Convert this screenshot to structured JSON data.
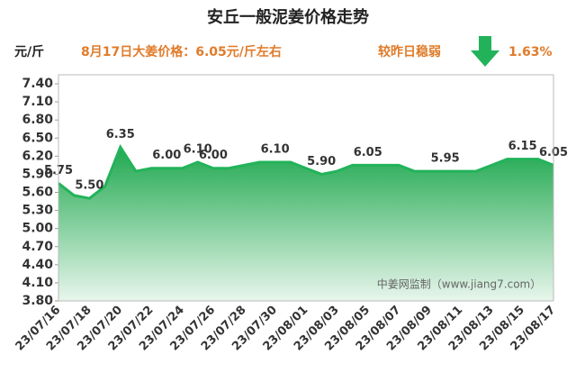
{
  "chart_data": {
    "type": "area",
    "title": "安丘一般泥姜价格走势",
    "unit_label": "元/斤",
    "subtitle": "8月17日大姜价格：6.05元/斤左右",
    "change_text": "较昨日稳弱",
    "change_value": "1.63%",
    "watermark": "中姜网监制（www.jiang7.com）",
    "categories": [
      "23/07/16",
      null,
      "23/07/18",
      null,
      "23/07/20",
      null,
      "23/07/22",
      null,
      "23/07/24",
      null,
      "23/07/26",
      null,
      "23/07/28",
      null,
      "23/07/30",
      null,
      "23/08/01",
      null,
      "23/08/03",
      null,
      "23/08/05",
      null,
      "23/08/07",
      null,
      "23/08/09",
      null,
      "23/08/11",
      null,
      "23/08/13",
      null,
      "23/08/15",
      null,
      "23/08/17"
    ],
    "series": [
      {
        "color": "#22b35a",
        "values": [
          5.75,
          5.55,
          5.5,
          5.7,
          6.35,
          5.95,
          6.0,
          6.0,
          6.0,
          6.1,
          6.0,
          6.0,
          6.05,
          6.1,
          6.1,
          6.1,
          6.0,
          5.9,
          5.95,
          6.05,
          6.05,
          6.05,
          6.05,
          5.95,
          5.95,
          5.95,
          5.95,
          5.95,
          6.05,
          6.15,
          6.15,
          6.15,
          6.05
        ],
        "value_labels": [
          "5.75",
          null,
          "5.50",
          null,
          "6.35",
          null,
          null,
          "6.00",
          null,
          "6.10",
          "6.00",
          null,
          null,
          null,
          "6.10",
          null,
          null,
          "5.90",
          null,
          null,
          "6.05",
          null,
          null,
          null,
          null,
          "5.95",
          null,
          null,
          null,
          null,
          "6.15",
          null,
          "6.05"
        ]
      }
    ],
    "ylim": [
      3.8,
      7.4
    ],
    "yticks": [
      {
        "value": 3.8,
        "label": "3.80"
      },
      {
        "value": 4.1,
        "label": "4.10"
      },
      {
        "value": 4.4,
        "label": "4.40"
      },
      {
        "value": 4.7,
        "label": "4.70"
      },
      {
        "value": 5.0,
        "label": "5.00"
      },
      {
        "value": 5.3,
        "label": "5.30"
      },
      {
        "value": 5.6,
        "label": "5.60"
      },
      {
        "value": 5.9,
        "label": "5.90"
      },
      {
        "value": 6.2,
        "label": "6.20"
      },
      {
        "value": 6.5,
        "label": "6.50"
      },
      {
        "value": 6.8,
        "label": "6.80"
      },
      {
        "value": 7.1,
        "label": "7.10"
      },
      {
        "value": 7.4,
        "label": "7.40"
      }
    ]
  }
}
